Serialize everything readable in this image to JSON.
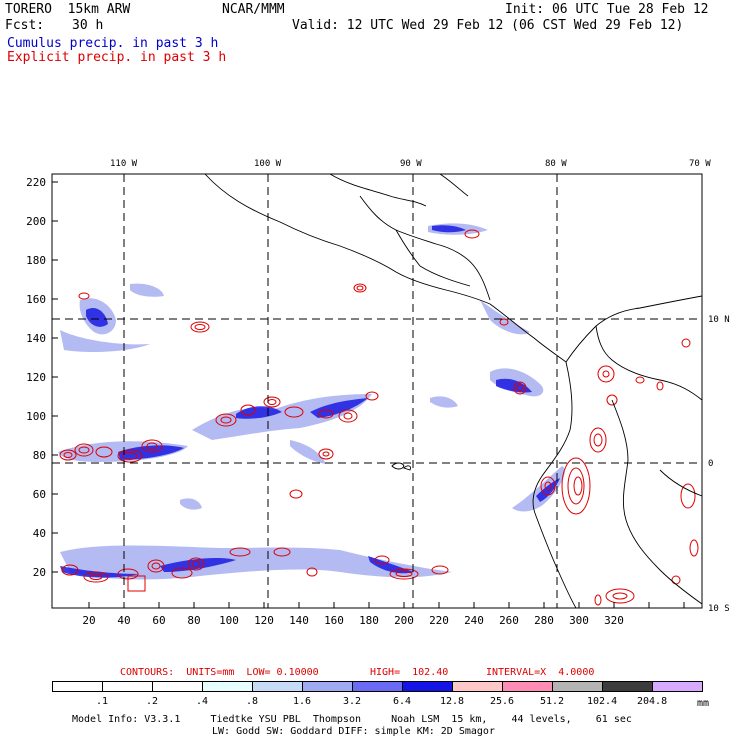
{
  "header": {
    "model": "TORERO  15km ARW",
    "org": "NCAR/MMM",
    "init": "Init: 06 UTC Tue 28 Feb 12",
    "fcst_label": "Fcst:",
    "fcst_value": "30 h",
    "valid": "Valid: 12 UTC Wed 29 Feb 12 (06 CST Wed 29 Feb 12)",
    "field1": "Cumulus precip. in past 3 h",
    "field2": "Explicit precip. in past 3 h"
  },
  "colors": {
    "cumulus": "#0000cc",
    "explicit": "#dd0000",
    "grid": "#000000"
  },
  "map": {
    "lon_labels": [
      "110 W",
      "100 W",
      "90 W",
      "80 W",
      "70 W"
    ],
    "lat_labels_right": [
      "10 N",
      "0",
      "10 S"
    ],
    "y_ticks": [
      "220",
      "200",
      "180",
      "160",
      "140",
      "120",
      "100",
      "80",
      "60",
      "40",
      "20"
    ],
    "x_ticks": [
      "20",
      "40",
      "60",
      "80",
      "100",
      "120",
      "140",
      "160",
      "180",
      "200",
      "220",
      "240",
      "260",
      "280",
      "300",
      "320"
    ]
  },
  "contours": {
    "label": "CONTOURS:  UNITS=mm  LOW= 0.10000",
    "high": "HIGH=  102.40",
    "interval": "INTERVAL=X  4.0000"
  },
  "colorbar": {
    "unit": "mm",
    "labels": [
      ".1",
      ".2",
      ".4",
      ".8",
      "1.6",
      "3.2",
      "6.4",
      "12.8",
      "25.6",
      "51.2",
      "102.4",
      "204.8"
    ],
    "colors": [
      "#ffffff",
      "#ffffff",
      "#ffffff",
      "#e6ffff",
      "#c6dcf6",
      "#a0aaf0",
      "#6a6af5",
      "#1414e6",
      "#ffc8c8",
      "#ff8cb4",
      "#b4b4b4",
      "#3c3c3c",
      "#d7aaff"
    ]
  },
  "footer": {
    "line1": "Model Info: V3.3.1     Tiedtke YSU PBL  Thompson     Noah LSM  15 km,    44 levels,    61 sec",
    "line2": "LW: Godd SW: Goddard DIFF: simple KM: 2D Smagor"
  }
}
